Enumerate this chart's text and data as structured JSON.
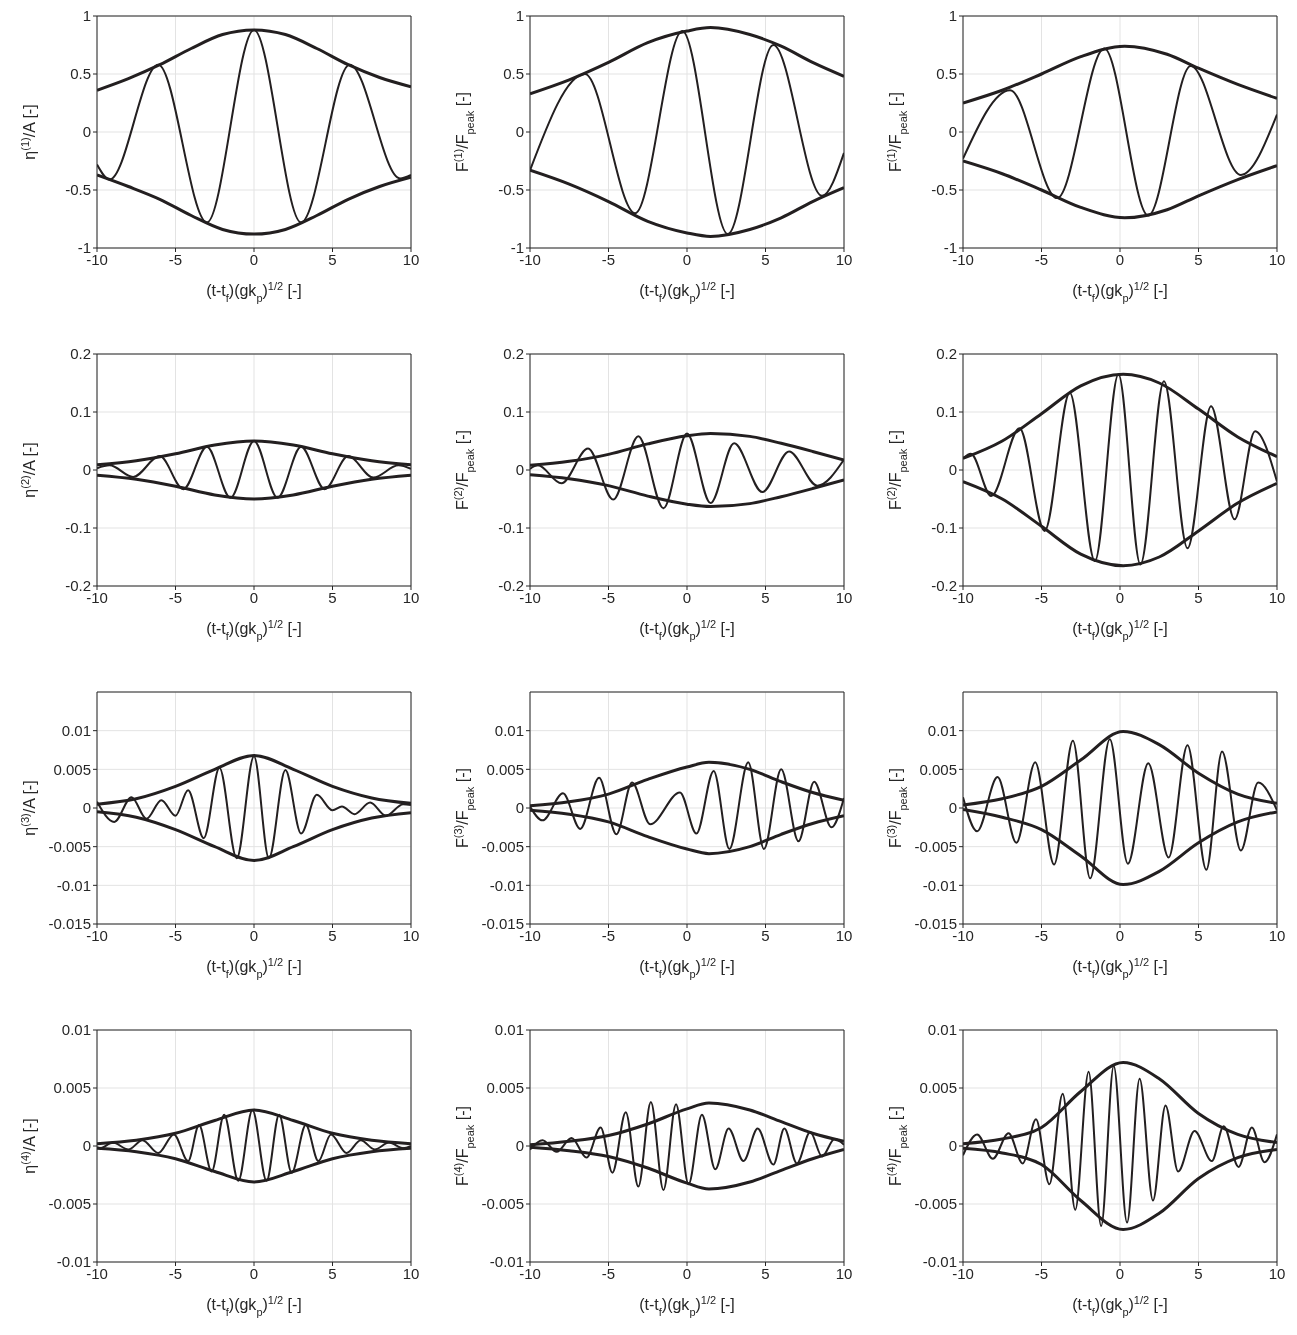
{
  "chart_data": [
    {
      "type": "line",
      "xlabel": "(t-t$_{f}$)(gk$_{p}$)$^{1/2}$ [-]",
      "ylabel": "η$^{(1)}$/A [-]",
      "xlim": [
        -10,
        10
      ],
      "xticks": [
        -10,
        -5,
        0,
        5,
        10
      ],
      "ylim": [
        -1,
        1
      ],
      "yticks": [
        -1,
        -0.5,
        0,
        0.5,
        1
      ],
      "grid": true,
      "series": [
        {
          "color": "#231f20",
          "x": [
            -10,
            -8,
            -6,
            -4,
            -2,
            0,
            2,
            4,
            6,
            8,
            10
          ],
          "values": [
            0.36,
            0.46,
            0.58,
            0.72,
            0.84,
            0.88,
            0.84,
            0.72,
            0.58,
            0.47,
            0.39
          ]
        },
        {
          "color": "#231f20",
          "x": [
            -10,
            -8,
            -6,
            -4,
            -2,
            0,
            2,
            4,
            6,
            8,
            10
          ],
          "values": [
            -0.37,
            -0.47,
            -0.58,
            -0.72,
            -0.84,
            -0.88,
            -0.84,
            -0.72,
            -0.58,
            -0.47,
            -0.39
          ]
        },
        {
          "color": "#231f20",
          "x": [
            -10,
            -9.2,
            -6.1,
            -3,
            0,
            3,
            6.1,
            9.3,
            10
          ],
          "values": [
            -0.28,
            -0.41,
            0.58,
            -0.78,
            0.88,
            -0.78,
            0.58,
            -0.4,
            -0.37
          ]
        }
      ]
    },
    {
      "type": "line",
      "xlabel": "(t-t$_{f}$)(gk$_{p}$)$^{1/2}$ [-]",
      "ylabel": "F$^{(1)}$/F$_{peak}$ [-]",
      "xlim": [
        -10,
        10
      ],
      "xticks": [
        -10,
        -5,
        0,
        5,
        10
      ],
      "ylim": [
        -1,
        1
      ],
      "yticks": [
        -1,
        -0.5,
        0,
        0.5,
        1
      ],
      "grid": true,
      "series": [
        {
          "color": "#231f20",
          "x": [
            -10,
            -7.5,
            -5,
            -2.5,
            0,
            1.5,
            4,
            6,
            8,
            10
          ],
          "values": [
            0.33,
            0.45,
            0.6,
            0.77,
            0.87,
            0.9,
            0.84,
            0.74,
            0.6,
            0.48
          ]
        },
        {
          "color": "#231f20",
          "x": [
            -10,
            -7.5,
            -5,
            -2.5,
            0,
            1.5,
            4,
            6,
            8,
            10
          ],
          "values": [
            -0.33,
            -0.45,
            -0.6,
            -0.77,
            -0.87,
            -0.9,
            -0.84,
            -0.74,
            -0.6,
            -0.48
          ]
        },
        {
          "color": "#231f20",
          "x": [
            -10,
            -6.5,
            -3.3,
            -0.3,
            2.6,
            5.5,
            8.6,
            10
          ],
          "values": [
            -0.33,
            0.5,
            -0.7,
            0.87,
            -0.88,
            0.75,
            -0.55,
            -0.18
          ]
        }
      ]
    },
    {
      "type": "line",
      "xlabel": "(t-t$_{f}$)(gk$_{p}$)$^{1/2}$ [-]",
      "ylabel": "F$^{(1)}$/F$_{peak}$ [-]",
      "xlim": [
        -10,
        10
      ],
      "xticks": [
        -10,
        -5,
        0,
        5,
        10
      ],
      "ylim": [
        -1,
        1
      ],
      "yticks": [
        -1,
        -0.5,
        0,
        0.5,
        1
      ],
      "grid": true,
      "series": [
        {
          "color": "#231f20",
          "x": [
            -10,
            -7.5,
            -5,
            -2.5,
            0.3,
            3,
            5,
            7.5,
            10
          ],
          "values": [
            0.25,
            0.36,
            0.5,
            0.65,
            0.74,
            0.67,
            0.55,
            0.41,
            0.29
          ]
        },
        {
          "color": "#231f20",
          "x": [
            -10,
            -7.5,
            -5,
            -2.5,
            0.3,
            3,
            5,
            7.5,
            10
          ],
          "values": [
            -0.25,
            -0.36,
            -0.5,
            -0.65,
            -0.74,
            -0.67,
            -0.55,
            -0.41,
            -0.29
          ]
        },
        {
          "color": "#231f20",
          "x": [
            -10,
            -7,
            -4,
            -1,
            1.8,
            4.5,
            7.7,
            10
          ],
          "values": [
            -0.23,
            0.36,
            -0.57,
            0.72,
            -0.72,
            0.57,
            -0.37,
            0.15
          ]
        }
      ]
    },
    {
      "type": "line",
      "xlabel": "(t-t$_{f}$)(gk$_{p}$)$^{1/2}$ [-]",
      "ylabel": "η$^{(2)}$/A [-]",
      "xlim": [
        -10,
        10
      ],
      "xticks": [
        -10,
        -5,
        0,
        5,
        10
      ],
      "ylim": [
        -0.2,
        0.2
      ],
      "yticks": [
        -0.2,
        -0.1,
        0,
        0.1,
        0.2
      ],
      "grid": true,
      "series": [
        {
          "color": "#231f20",
          "x": [
            -10,
            -7.5,
            -5,
            -2.5,
            0,
            2.5,
            5,
            7.5,
            10
          ],
          "values": [
            0.009,
            0.016,
            0.028,
            0.043,
            0.05,
            0.043,
            0.028,
            0.016,
            0.009
          ]
        },
        {
          "color": "#231f20",
          "x": [
            -10,
            -7.5,
            -5,
            -2.5,
            0,
            2.5,
            5,
            7.5,
            10
          ],
          "values": [
            -0.009,
            -0.016,
            -0.028,
            -0.043,
            -0.05,
            -0.043,
            -0.028,
            -0.016,
            -0.009
          ]
        },
        {
          "color": "#231f20",
          "x": [
            -10,
            -9.2,
            -7.7,
            -6,
            -4.5,
            -3,
            -1.5,
            0,
            1.5,
            3,
            4.5,
            6,
            7.6,
            9.2,
            10
          ],
          "values": [
            0.003,
            0.008,
            -0.012,
            0.024,
            -0.033,
            0.04,
            -0.048,
            0.05,
            -0.048,
            0.04,
            -0.033,
            0.024,
            -0.013,
            0.008,
            0.002
          ]
        }
      ]
    },
    {
      "type": "line",
      "xlabel": "(t-t$_{f}$)(gk$_{p}$)$^{1/2}$ [-]",
      "ylabel": "F$^{(2)}$/F$_{peak}$ [-]",
      "xlim": [
        -10,
        10
      ],
      "xticks": [
        -10,
        -5,
        0,
        5,
        10
      ],
      "ylim": [
        -0.2,
        0.2
      ],
      "yticks": [
        -0.2,
        -0.1,
        0,
        0.1,
        0.2
      ],
      "grid": true,
      "series": [
        {
          "color": "#231f20",
          "x": [
            -10,
            -7.5,
            -5,
            -2.5,
            0,
            1.5,
            4,
            6,
            8,
            10
          ],
          "values": [
            0.008,
            0.015,
            0.027,
            0.045,
            0.059,
            0.063,
            0.058,
            0.046,
            0.032,
            0.017
          ]
        },
        {
          "color": "#231f20",
          "x": [
            -10,
            -7.5,
            -5,
            -2.5,
            0,
            1.5,
            4,
            6,
            8,
            10
          ],
          "values": [
            -0.008,
            -0.015,
            -0.027,
            -0.045,
            -0.059,
            -0.063,
            -0.058,
            -0.046,
            -0.032,
            -0.017
          ]
        },
        {
          "color": "#231f20",
          "x": [
            -10,
            -9.5,
            -8,
            -6.3,
            -4.7,
            -3.1,
            -1.5,
            0,
            1.5,
            3,
            4.8,
            6.5,
            8.3,
            10
          ],
          "values": [
            0.002,
            0.008,
            -0.023,
            0.037,
            -0.051,
            0.058,
            -0.066,
            0.063,
            -0.057,
            0.046,
            -0.038,
            0.032,
            -0.027,
            0.018
          ]
        }
      ]
    },
    {
      "type": "line",
      "xlabel": "(t-t$_{f}$)(gk$_{p}$)$^{1/2}$ [-]",
      "ylabel": "F$^{(2)}$/F$_{peak}$ [-]",
      "xlim": [
        -10,
        10
      ],
      "xticks": [
        -10,
        -5,
        0,
        5,
        10
      ],
      "ylim": [
        -0.2,
        0.2
      ],
      "yticks": [
        -0.2,
        -0.1,
        0,
        0.1,
        0.2
      ],
      "grid": true,
      "series": [
        {
          "color": "#231f20",
          "x": [
            -10,
            -7.5,
            -5,
            -2.5,
            0.2,
            2.5,
            5,
            7.5,
            10
          ],
          "values": [
            0.02,
            0.05,
            0.097,
            0.145,
            0.165,
            0.15,
            0.105,
            0.057,
            0.023
          ]
        },
        {
          "color": "#231f20",
          "x": [
            -10,
            -7.5,
            -5,
            -2.5,
            0.2,
            2.5,
            5,
            7.5,
            10
          ],
          "values": [
            -0.02,
            -0.05,
            -0.097,
            -0.145,
            -0.165,
            -0.15,
            -0.105,
            -0.057,
            -0.023
          ]
        },
        {
          "color": "#231f20",
          "x": [
            -10,
            -9.5,
            -8.2,
            -6.4,
            -4.8,
            -3.2,
            -1.6,
            -0.1,
            1.3,
            2.8,
            4.3,
            5.8,
            7.3,
            8.6,
            10
          ],
          "values": [
            0.02,
            0.028,
            -0.045,
            0.072,
            -0.105,
            0.133,
            -0.157,
            0.165,
            -0.163,
            0.153,
            -0.135,
            0.11,
            -0.085,
            0.067,
            -0.02
          ]
        }
      ]
    },
    {
      "type": "line",
      "xlabel": "(t-t$_{f}$)(gk$_{p}$)$^{1/2}$ [-]",
      "ylabel": "η$^{(3)}$/A [-]",
      "xlim": [
        -10,
        10
      ],
      "xticks": [
        -10,
        -5,
        0,
        5,
        10
      ],
      "ylim": [
        -0.015,
        0.015
      ],
      "yticks": [
        -0.015,
        -0.01,
        -0.005,
        0,
        0.005,
        0.01
      ],
      "grid": true,
      "series": [
        {
          "color": "#231f20",
          "x": [
            -10,
            -7.5,
            -5,
            -2.5,
            0,
            2.5,
            5,
            7.5,
            10
          ],
          "values": [
            0.0005,
            0.0012,
            0.0028,
            0.005,
            0.0068,
            0.005,
            0.0028,
            0.0013,
            0.0006
          ]
        },
        {
          "color": "#231f20",
          "x": [
            -10,
            -7.5,
            -5,
            -2.5,
            0,
            2.5,
            5,
            7.5,
            10
          ],
          "values": [
            -0.0005,
            -0.0012,
            -0.0028,
            -0.005,
            -0.0068,
            -0.005,
            -0.0028,
            -0.0013,
            -0.0006
          ]
        },
        {
          "color": "#231f20",
          "x": [
            -10,
            -8.9,
            -7.8,
            -6.85,
            -5.9,
            -5,
            -4.2,
            -3.2,
            -2.2,
            -1.1,
            0,
            0.95,
            2,
            3,
            4,
            5,
            5.6,
            6.4,
            7.4,
            8.4,
            9.5,
            10
          ],
          "values": [
            0.0008,
            -0.0018,
            0.0014,
            -0.0014,
            0.001,
            -0.001,
            0.0023,
            -0.0039,
            0.0052,
            -0.0065,
            0.0067,
            -0.0065,
            0.0049,
            -0.0033,
            0.0017,
            -0.0003,
            0.0002,
            -0.0008,
            0.0007,
            -0.001,
            0.0005,
            0.0004
          ]
        }
      ]
    },
    {
      "type": "line",
      "xlabel": "(t-t$_{f}$)(gk$_{p}$)$^{1/2}$ [-]",
      "ylabel": "F$^{(3)}$/F$_{peak}$ [-]",
      "xlim": [
        -10,
        10
      ],
      "xticks": [
        -10,
        -5,
        0,
        5,
        10
      ],
      "ylim": [
        -0.015,
        0.015
      ],
      "yticks": [
        -0.015,
        -0.01,
        -0.005,
        0,
        0.005,
        0.01
      ],
      "grid": true,
      "series": [
        {
          "color": "#231f20",
          "x": [
            -10,
            -7.5,
            -5,
            -2.5,
            0,
            1.4,
            4,
            6,
            8,
            10
          ],
          "values": [
            0.0003,
            0.0008,
            0.0018,
            0.0037,
            0.0053,
            0.0059,
            0.005,
            0.0034,
            0.002,
            0.001
          ]
        },
        {
          "color": "#231f20",
          "x": [
            -10,
            -7.5,
            -5,
            -2.5,
            0,
            1.4,
            4,
            6,
            8,
            10
          ],
          "values": [
            -0.0003,
            -0.0008,
            -0.0018,
            -0.0037,
            -0.0053,
            -0.0059,
            -0.005,
            -0.0034,
            -0.002,
            -0.001
          ]
        },
        {
          "color": "#231f20",
          "x": [
            -10,
            -9.2,
            -7.9,
            -6.8,
            -5.6,
            -4.5,
            -3.5,
            -2.35,
            -0.45,
            0.6,
            1.7,
            2.7,
            3.9,
            4.9,
            6,
            7.1,
            8.1,
            9.2,
            10
          ],
          "values": [
            0.0002,
            -0.0016,
            0.0019,
            -0.0027,
            0.0039,
            -0.0034,
            0.0033,
            -0.0021,
            0.002,
            -0.0033,
            0.0048,
            -0.0053,
            0.0059,
            -0.0053,
            0.005,
            -0.0043,
            0.0034,
            -0.0025,
            0.0013
          ]
        }
      ]
    },
    {
      "type": "line",
      "xlabel": "(t-t$_{f}$)(gk$_{p}$)$^{1/2}$ [-]",
      "ylabel": "F$^{(3)}$/F$_{peak}$ [-]",
      "xlim": [
        -10,
        10
      ],
      "xticks": [
        -10,
        -5,
        0,
        5,
        10
      ],
      "ylim": [
        -0.015,
        0.015
      ],
      "yticks": [
        -0.015,
        -0.01,
        -0.005,
        0,
        0.005,
        0.01
      ],
      "grid": true,
      "series": [
        {
          "color": "#231f20",
          "x": [
            -10,
            -7.5,
            -5,
            -2.5,
            0.2,
            2.5,
            5,
            7.5,
            10
          ],
          "values": [
            0.0004,
            0.0012,
            0.0028,
            0.0062,
            0.0099,
            0.0082,
            0.0045,
            0.0018,
            0.0006
          ]
        },
        {
          "color": "#231f20",
          "x": [
            -10,
            -7.5,
            -5,
            -2.5,
            0.2,
            2.5,
            5,
            7.5,
            10
          ],
          "values": [
            -0.0002,
            -0.0012,
            -0.0028,
            -0.0062,
            -0.0099,
            -0.0082,
            -0.0045,
            -0.0018,
            -0.0005
          ]
        },
        {
          "color": "#231f20",
          "x": [
            -10,
            -9.1,
            -7.8,
            -6.6,
            -5.4,
            -4.2,
            -3,
            -1.9,
            -0.65,
            0.5,
            1.8,
            3.1,
            4.3,
            5.5,
            6.5,
            7.7,
            8.8,
            10
          ],
          "values": [
            0.0014,
            -0.003,
            0.004,
            -0.0045,
            0.0059,
            -0.0073,
            0.0087,
            -0.0091,
            0.0089,
            -0.0072,
            0.0058,
            -0.0064,
            0.0081,
            -0.008,
            0.0073,
            -0.0055,
            0.0033,
            -0.0003
          ]
        }
      ]
    },
    {
      "type": "line",
      "xlabel": "(t-t$_{f}$)(gk$_{p}$)$^{1/2}$ [-]",
      "ylabel": "η$^{(4)}$/A [-]",
      "xlim": [
        -10,
        10
      ],
      "xticks": [
        -10,
        -5,
        0,
        5,
        10
      ],
      "ylim": [
        -0.01,
        0.01
      ],
      "yticks": [
        -0.01,
        -0.005,
        0,
        0.005,
        0.01
      ],
      "grid": true,
      "series": [
        {
          "color": "#231f20",
          "x": [
            -10,
            -7.5,
            -5,
            -2.5,
            0,
            2.5,
            5,
            7.5,
            10
          ],
          "values": [
            0.0002,
            0.0005,
            0.0011,
            0.0022,
            0.0031,
            0.0022,
            0.0011,
            0.0005,
            0.0002
          ]
        },
        {
          "color": "#231f20",
          "x": [
            -10,
            -7.5,
            -5,
            -2.5,
            0,
            2.5,
            5,
            7.5,
            10
          ],
          "values": [
            -0.0002,
            -0.0005,
            -0.0011,
            -0.0022,
            -0.0031,
            -0.0022,
            -0.0011,
            -0.0005,
            -0.0002
          ]
        },
        {
          "color": "#231f20",
          "x": [
            -10,
            -9.8,
            -9,
            -8,
            -7.1,
            -6.1,
            -5.1,
            -4.2,
            -3.5,
            -2.7,
            -1.9,
            -1,
            -0.1,
            0.8,
            1.6,
            2.4,
            3.3,
            4.1,
            4.9,
            5.9,
            6.8,
            7.7,
            8.6,
            9.5,
            10
          ],
          "values": [
            -0.0001,
            -0.0002,
            0.0003,
            -0.0003,
            0.0005,
            -0.0006,
            0.001,
            -0.0013,
            0.0018,
            -0.0022,
            0.0027,
            -0.003,
            0.0031,
            -0.003,
            0.0027,
            -0.0023,
            0.0018,
            -0.0013,
            0.001,
            -0.0006,
            0.0005,
            -0.0003,
            0.0003,
            -0.0002,
            0
          ]
        }
      ]
    },
    {
      "type": "line",
      "xlabel": "(t-t$_{f}$)(gk$_{p}$)$^{1/2}$ [-]",
      "ylabel": "F$^{(4)}$/F$_{peak}$ [-]",
      "xlim": [
        -10,
        10
      ],
      "xticks": [
        -10,
        -5,
        0,
        5,
        10
      ],
      "ylim": [
        -0.01,
        0.01
      ],
      "yticks": [
        -0.01,
        -0.005,
        0,
        0.005,
        0.01
      ],
      "grid": true,
      "series": [
        {
          "color": "#231f20",
          "x": [
            -10,
            -7.5,
            -5,
            -2.5,
            0,
            1.4,
            4,
            6,
            8,
            10
          ],
          "values": [
            0.0001,
            0.0004,
            0.0009,
            0.0019,
            0.0032,
            0.0037,
            0.0031,
            0.0021,
            0.0011,
            0.0004
          ]
        },
        {
          "color": "#231f20",
          "x": [
            -10,
            -7.5,
            -5,
            -2.5,
            0,
            1.4,
            4,
            6,
            8,
            10
          ],
          "values": [
            -0.0001,
            -0.0004,
            -0.0009,
            -0.0019,
            -0.0032,
            -0.0037,
            -0.0031,
            -0.0021,
            -0.0011,
            -0.0003
          ]
        },
        {
          "color": "#231f20",
          "x": [
            -10,
            -9.2,
            -8.3,
            -7.35,
            -6.4,
            -5.5,
            -4.75,
            -3.9,
            -3.1,
            -2.3,
            -1.5,
            -0.7,
            0.1,
            0.95,
            1.8,
            2.65,
            3.6,
            4.5,
            5.5,
            6.2,
            7,
            7.85,
            8.6,
            9.4,
            10
          ],
          "values": [
            -0.0003,
            0.0005,
            -0.0005,
            0.0007,
            -0.001,
            0.0016,
            -0.0023,
            0.0029,
            -0.0035,
            0.0038,
            -0.0038,
            0.0036,
            -0.0033,
            0.0027,
            -0.002,
            0.0015,
            -0.0013,
            0.0015,
            -0.0016,
            0.0015,
            -0.0015,
            0.0012,
            -0.0009,
            0.0006,
            0.0001
          ]
        }
      ]
    },
    {
      "type": "line",
      "xlabel": "(t-t$_{f}$)(gk$_{p}$)$^{1/2}$ [-]",
      "ylabel": "F$^{(4)}$/F$_{peak}$ [-]",
      "xlim": [
        -10,
        10
      ],
      "xticks": [
        -10,
        -5,
        0,
        5,
        10
      ],
      "ylim": [
        -0.01,
        0.01
      ],
      "yticks": [
        -0.01,
        -0.005,
        0,
        0.005,
        0.01
      ],
      "grid": true,
      "series": [
        {
          "color": "#231f20",
          "x": [
            -10,
            -7.5,
            -5,
            -2.5,
            0.2,
            2.5,
            5,
            7.5,
            10
          ],
          "values": [
            0.0002,
            0.0006,
            0.0016,
            0.0047,
            0.0072,
            0.0058,
            0.0028,
            0.001,
            0.0003
          ]
        },
        {
          "color": "#231f20",
          "x": [
            -10,
            -7.5,
            -5,
            -2.5,
            0.2,
            2.5,
            5,
            7.5,
            10
          ],
          "values": [
            -0.0002,
            -0.0006,
            -0.0016,
            -0.0047,
            -0.0072,
            -0.0058,
            -0.0028,
            -0.001,
            -0.0003
          ]
        },
        {
          "color": "#231f20",
          "x": [
            -10,
            -9.1,
            -8.1,
            -7.1,
            -6.2,
            -5.35,
            -4.5,
            -3.65,
            -2.85,
            -2,
            -1.2,
            -0.4,
            0.45,
            1.25,
            2.1,
            2.9,
            3.7,
            4.75,
            5.85,
            6.6,
            7.55,
            8.4,
            9.2,
            10
          ],
          "values": [
            -0.0008,
            0.001,
            -0.0011,
            0.0011,
            -0.0015,
            0.0023,
            -0.0033,
            0.0045,
            -0.0055,
            0.0064,
            -0.0069,
            0.0069,
            -0.0066,
            0.0058,
            -0.0047,
            0.0035,
            -0.0022,
            0.0013,
            -0.0013,
            0.0017,
            -0.0018,
            0.0016,
            -0.0014,
            0.001
          ]
        }
      ]
    }
  ]
}
